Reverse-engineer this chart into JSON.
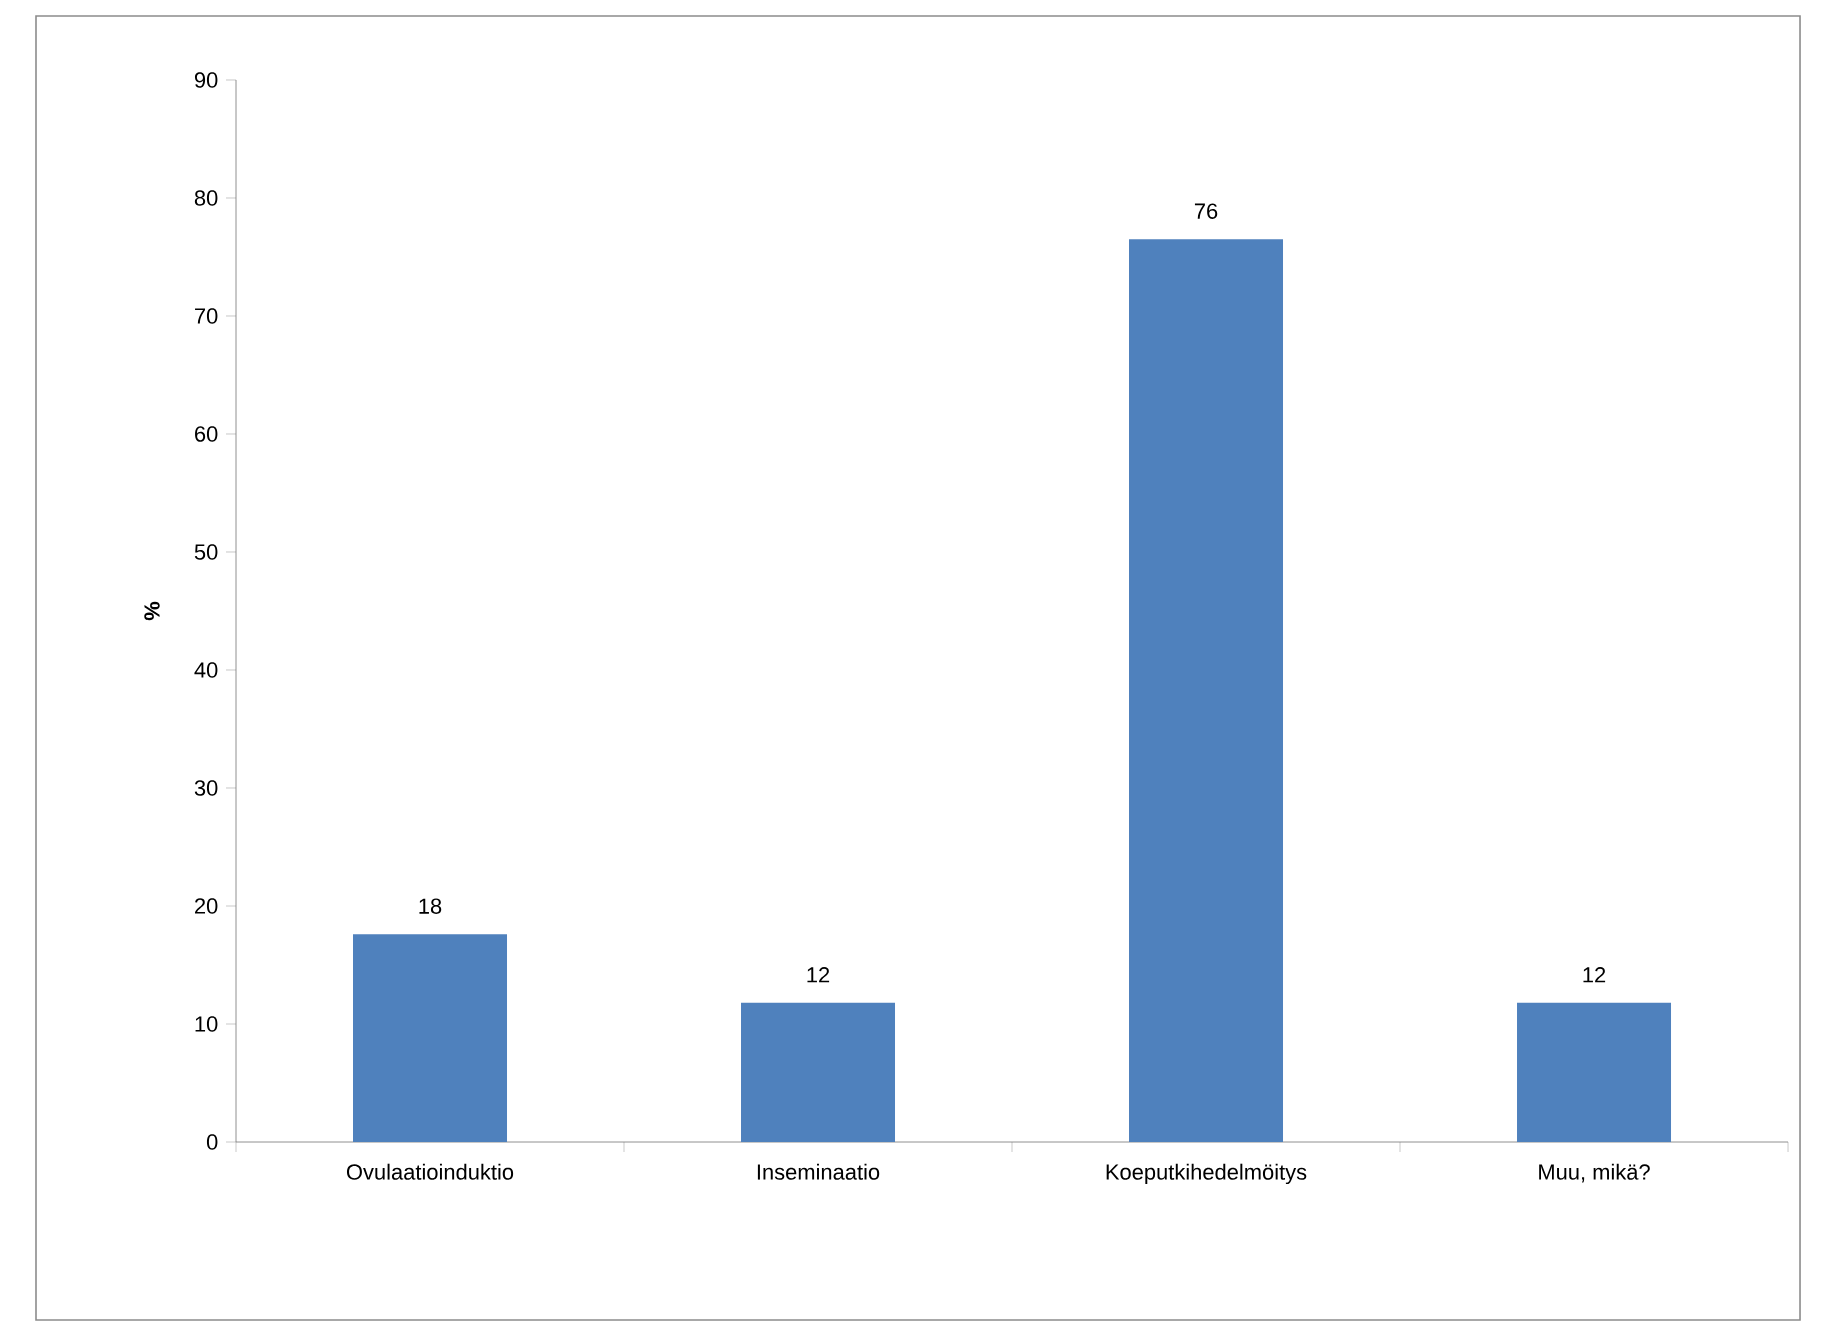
{
  "chart_data": {
    "type": "bar",
    "ylabel": "%",
    "categories": [
      "Ovulaatioinduktio",
      "Inseminaatio",
      "Koeputkihedelmöitys",
      "Muu, mikä?"
    ],
    "values": [
      17.6,
      11.8,
      76.5,
      11.8
    ],
    "value_labels": [
      "18",
      "12",
      "76",
      "12"
    ],
    "color": "#4f81bd",
    "ylim": [
      0,
      90
    ],
    "yticks": [
      0,
      10,
      20,
      30,
      40,
      50,
      60,
      70,
      80,
      90
    ],
    "grid": false
  }
}
